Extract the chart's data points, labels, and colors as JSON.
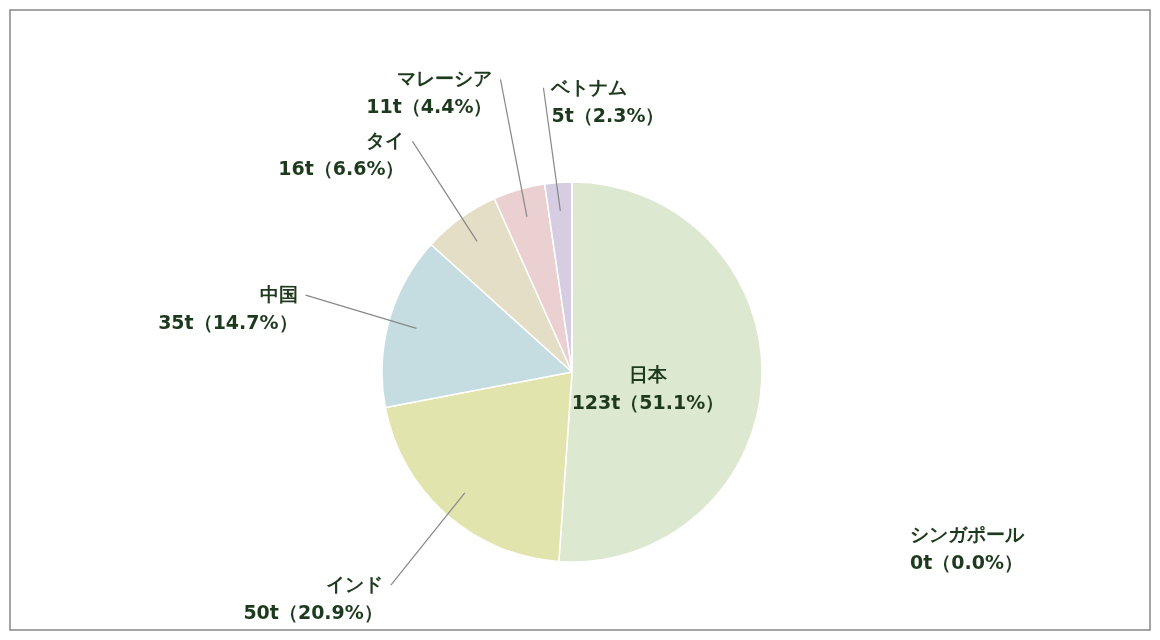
{
  "chart_data": {
    "type": "pie",
    "categories": [
      "日本",
      "インド",
      "中国",
      "タイ",
      "マレーシア",
      "ベトナム",
      "シンガポール"
    ],
    "values": [
      51.1,
      20.9,
      14.7,
      6.6,
      4.4,
      2.3,
      0.0
    ],
    "value_labels": [
      "123t（51.1%）",
      "50t（20.9%）",
      "35t（14.7%）",
      "16t（6.6%）",
      "11t（4.4%）",
      "5t（2.3%）",
      "0t（0.0%）"
    ],
    "colors": [
      "#dde8d0",
      "#e2e4ae",
      "#c5dde0",
      "#e4dec6",
      "#ebd0d2",
      "#d7cde3",
      "#cccccc"
    ],
    "legend": false
  }
}
